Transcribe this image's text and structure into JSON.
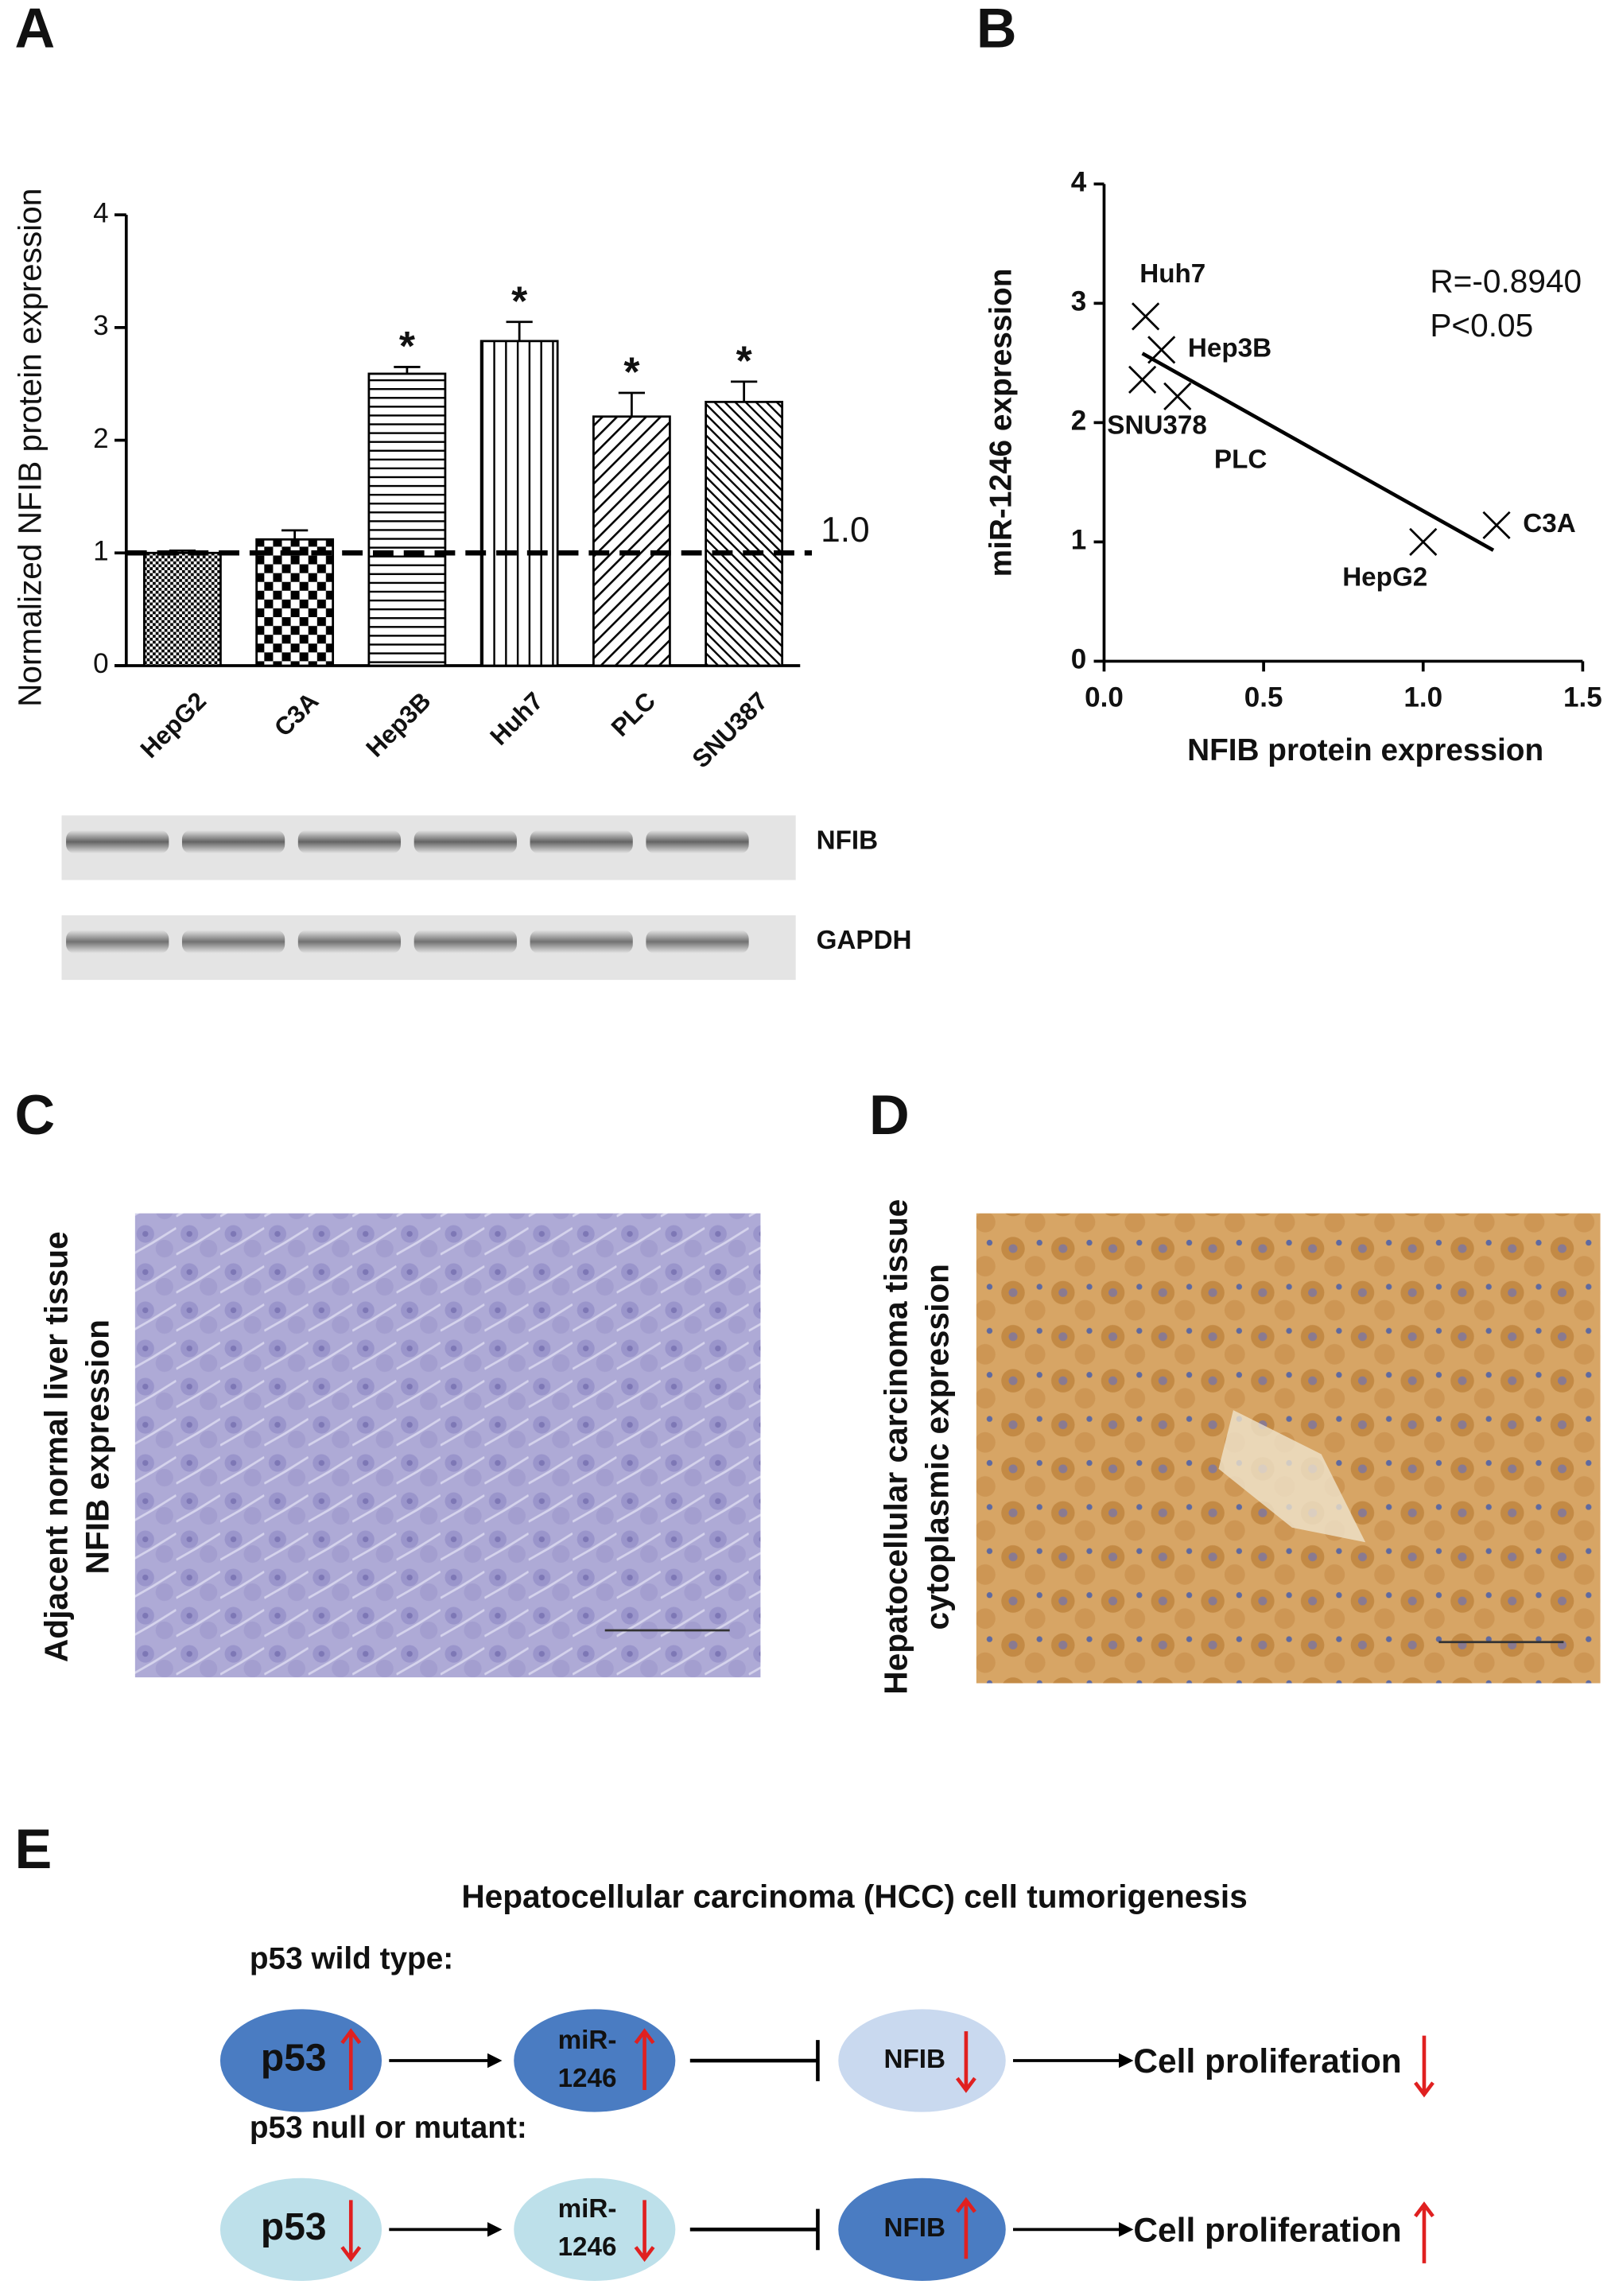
{
  "panel_labels": [
    "A",
    "B",
    "C",
    "D",
    "E"
  ],
  "chart_data": [
    {
      "type": "bar",
      "ylabel": "Normalized NFIB protein expression",
      "categories": [
        "HepG2",
        "C3A",
        "Hep3B",
        "Huh7",
        "PLC",
        "SNU387"
      ],
      "values": [
        1.0,
        1.12,
        2.59,
        2.88,
        2.21,
        2.34
      ],
      "errors": [
        0.02,
        0.08,
        0.06,
        0.17,
        0.21,
        0.18
      ],
      "significance": [
        null,
        null,
        "*",
        "*",
        "*",
        "*"
      ],
      "patterns": [
        "dots",
        "checker",
        "hlines",
        "vlines",
        "diag",
        "diag-dense"
      ],
      "color": "#000000",
      "ylim": [
        0,
        4
      ],
      "yticks": [
        0,
        1,
        2,
        3,
        4
      ],
      "reference_line": {
        "value": 1,
        "label": "1.0"
      }
    },
    {
      "type": "scatter",
      "xlabel": "NFIB protein  expression",
      "ylabel": "miR-1246 expression",
      "categories": [
        "Huh7",
        "Hep3B",
        "SNU378",
        "PLC",
        "HepG2",
        "C3A"
      ],
      "x": [
        0.13,
        0.18,
        0.12,
        0.23,
        1.0,
        1.23
      ],
      "values": [
        2.89,
        2.61,
        2.36,
        2.22,
        1.0,
        1.14
      ],
      "fit": {
        "x": [
          0.12,
          1.22
        ],
        "y": [
          2.58,
          0.93
        ]
      },
      "annotations": [
        "R=-0.8940",
        "P<0.05"
      ],
      "xlim": [
        0,
        1.5
      ],
      "ylim": [
        0,
        4
      ],
      "xticks": [
        {
          "value": 0,
          "label": "0.0"
        },
        {
          "value": 0.5,
          "label": "0.5"
        },
        {
          "value": 1,
          "label": "1.0"
        },
        {
          "value": 1.5,
          "label": "1.5"
        }
      ],
      "yticks": [
        0,
        1,
        2,
        3,
        4
      ]
    }
  ],
  "blot": {
    "labels": [
      "NFIB",
      "GAPDH"
    ]
  },
  "histology": [
    {
      "title_lines": [
        "Adjacent normal liver tissue",
        "NFIB expression"
      ]
    },
    {
      "title_lines": [
        "Hepatocellular carcinoma tissue",
        "cytoplasmic expression"
      ]
    }
  ],
  "diagram": {
    "title": "Hepatocellular carcinoma (HCC) cell tumorigenesis",
    "rows": [
      {
        "label": "p53 wild type:",
        "nodes": [
          {
            "lines": [
              "p53"
            ],
            "arrow": "up"
          },
          {
            "lines": [
              "miR-",
              "1246"
            ],
            "arrow": "up"
          },
          {
            "lines": [
              "NFIB"
            ],
            "arrow": "down"
          }
        ],
        "output": "Cell proliferation",
        "output_arrow": "down"
      },
      {
        "label": "p53 null or mutant:",
        "nodes": [
          {
            "lines": [
              "p53"
            ],
            "arrow": "down"
          },
          {
            "lines": [
              "miR-",
              "1246"
            ],
            "arrow": "down"
          },
          {
            "lines": [
              "NFIB"
            ],
            "arrow": "up"
          }
        ],
        "output": "Cell proliferation",
        "output_arrow": "up"
      }
    ]
  }
}
